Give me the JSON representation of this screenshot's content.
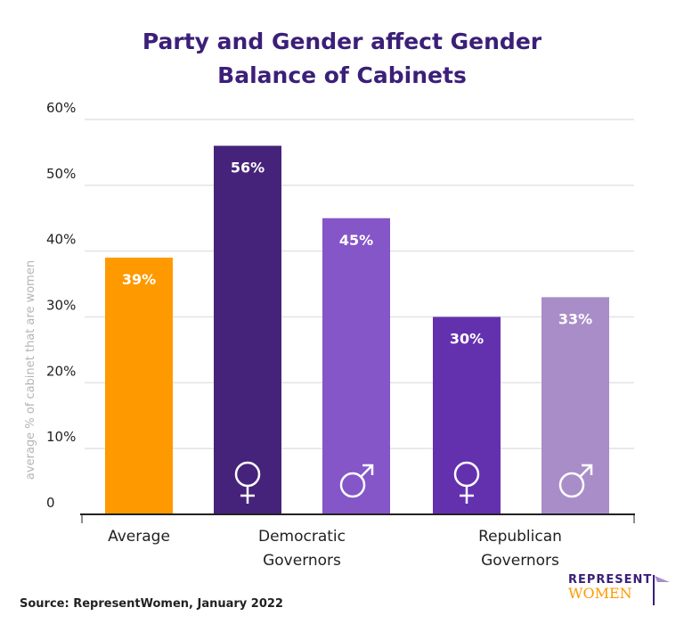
{
  "title_line1": "Party and Gender affect Gender",
  "title_line2": "Balance of Cabinets",
  "source": "Source: RepresentWomen, January 2022",
  "logo": {
    "line1": "REPRESENT",
    "line2": "WOMEN"
  },
  "chart_data": {
    "type": "bar",
    "title": "Party and Gender affect Gender Balance of Cabinets",
    "ylabel": "average % of cabinet that are women",
    "ylim": [
      0,
      60
    ],
    "yticks": [
      0,
      10,
      20,
      30,
      40,
      50,
      60
    ],
    "ytick_labels": [
      "0",
      "10%",
      "20%",
      "30%",
      "40%",
      "50%",
      "60%"
    ],
    "grid": true,
    "groups": [
      {
        "label_lines": [
          "Average"
        ]
      },
      {
        "label_lines": [
          "Democratic",
          "Governors"
        ]
      },
      {
        "label_lines": [
          "Republican",
          "Governors"
        ]
      }
    ],
    "bars": [
      {
        "group": 0,
        "value": 39,
        "label": "39%",
        "color": "#ff9900",
        "symbol": ""
      },
      {
        "group": 1,
        "value": 56,
        "label": "56%",
        "color": "#46237a",
        "symbol": "female-icon"
      },
      {
        "group": 1,
        "value": 45,
        "label": "45%",
        "color": "#8456c8",
        "symbol": "male-icon"
      },
      {
        "group": 2,
        "value": 30,
        "label": "30%",
        "color": "#6331ae",
        "symbol": "female-icon"
      },
      {
        "group": 2,
        "value": 33,
        "label": "33%",
        "color": "#a98dc8",
        "symbol": "male-icon"
      }
    ]
  }
}
